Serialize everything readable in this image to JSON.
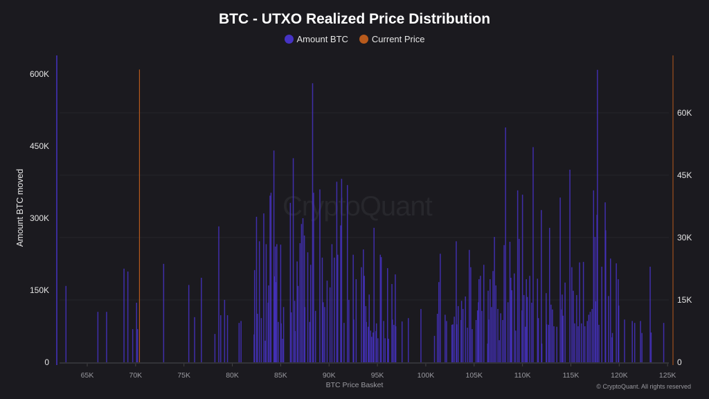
{
  "chart_data": {
    "type": "bar",
    "title": "BTC - UTXO Realized Price Distribution",
    "xlabel": "BTC Price Basket",
    "ylabel": "Amount BTC moved",
    "legend": {
      "placement": "top-center",
      "entries": [
        "Amount BTC",
        "Current Price"
      ]
    },
    "colors": {
      "amount": "#4633c4",
      "current_price": "#b85a1c",
      "background": "#1b1a1f"
    },
    "grid": true,
    "xlim": [
      61850,
      125560
    ],
    "ylim": [
      0,
      639000
    ],
    "y2lim": [
      0,
      73800
    ],
    "x_ticks": [
      "65K",
      "70K",
      "75K",
      "80K",
      "85K",
      "90K",
      "95K",
      "100K",
      "105K",
      "110K",
      "115K",
      "120K",
      "125K"
    ],
    "x_tick_values": [
      65000,
      70000,
      75000,
      80000,
      85000,
      90000,
      95000,
      100000,
      105000,
      110000,
      115000,
      120000,
      125000
    ],
    "y_ticks": [
      "0",
      "150K",
      "300K",
      "450K",
      "600K"
    ],
    "y_tick_values": [
      0,
      150000,
      300000,
      450000,
      600000
    ],
    "y2_ticks": [
      "0",
      "15K",
      "30K",
      "45K",
      "60K"
    ],
    "y2_tick_values": [
      0,
      15000,
      30000,
      45000,
      60000
    ],
    "current_price": 70400,
    "series": [
      {
        "name": "Amount BTC",
        "x": [
          62800,
          66100,
          67000,
          68800,
          69200,
          69700,
          70100,
          70200,
          72900,
          75500,
          76100,
          76800,
          78200,
          78600,
          78800,
          79200,
          79500,
          80700,
          80900,
          82250,
          82300,
          82500,
          82600,
          82800,
          83000,
          83250,
          83400,
          83500,
          83700,
          83750,
          83900,
          84000,
          84300,
          84350,
          84450,
          84500,
          84600,
          84750,
          85000,
          85050,
          85200,
          85300,
          86000,
          86100,
          86300,
          86450,
          86500,
          86700,
          86800,
          87000,
          87150,
          87300,
          87450,
          87500,
          87800,
          88000,
          88100,
          88300,
          88400,
          88600,
          89050,
          89300,
          89400,
          89550,
          89800,
          90100,
          90300,
          90550,
          90800,
          90900,
          91200,
          91300,
          91550,
          91900,
          92050,
          92500,
          92550,
          92800,
          93350,
          93550,
          93650,
          93800,
          93850,
          94050,
          94150,
          94300,
          94400,
          94550,
          94650,
          94850,
          94900,
          95050,
          95300,
          95400,
          95650,
          95800,
          96050,
          96150,
          96500,
          96550,
          96700,
          96850,
          96900,
          97550,
          98200,
          99500,
          100900,
          101200,
          101350,
          101500,
          102000,
          102150,
          102700,
          102800,
          102950,
          103150,
          103200,
          103350,
          103650,
          103700,
          103850,
          104100,
          104300,
          104500,
          104650,
          104800,
          105200,
          105350,
          105450,
          105500,
          105650,
          105800,
          106000,
          106400,
          106450,
          106500,
          106650,
          106800,
          106950,
          107100,
          107250,
          107450,
          107600,
          107750,
          107950,
          108100,
          108250,
          108500,
          108700,
          108800,
          108900,
          109150,
          109300,
          109500,
          109650,
          109950,
          110000,
          110150,
          110300,
          110400,
          110500,
          110750,
          110950,
          111100,
          111550,
          111650,
          111950,
          112000,
          112450,
          112500,
          112700,
          112800,
          112950,
          113100,
          113250,
          113550,
          113900,
          114050,
          114100,
          114200,
          114400,
          114900,
          115100,
          115250,
          115400,
          115600,
          115750,
          115900,
          116100,
          116300,
          116450,
          116700,
          116850,
          117000,
          117200,
          117350,
          117500,
          117550,
          117700,
          117750,
          117900,
          118200,
          118550,
          118600,
          118900,
          119100,
          119250,
          119300,
          119700,
          119900,
          119950,
          120550,
          121350,
          121600,
          122200,
          122350,
          123200,
          123300,
          124600
        ],
        "values": [
          159000,
          105000,
          105000,
          195000,
          189000,
          69000,
          124000,
          69000,
          205000,
          161000,
          94000,
          176000,
          59000,
          283000,
          98000,
          130000,
          98000,
          82000,
          86000,
          58000,
          192000,
          303000,
          101000,
          252000,
          92000,
          310000,
          45000,
          246000,
          124000,
          160000,
          347000,
          353000,
          441000,
          179000,
          241000,
          167000,
          246000,
          84000,
          245000,
          81000,
          49000,
          115000,
          332000,
          104000,
          425000,
          128000,
          65000,
          210000,
          159000,
          248000,
          288000,
          300000,
          264000,
          115000,
          229000,
          84000,
          203000,
          581000,
          353000,
          107000,
          360000,
          218000,
          125000,
          115000,
          170000,
          156000,
          246000,
          218000,
          376000,
          224000,
          285000,
          382000,
          82000,
          369000,
          130000,
          224000,
          89000,
          173000,
          198000,
          235000,
          180000,
          117000,
          84000,
          74000,
          141000,
          66000,
          53000,
          62000,
          280000,
          65000,
          81000,
          50000,
          224000,
          219000,
          86000,
          50000,
          196000,
          49000,
          163000,
          89000,
          78000,
          183000,
          75000,
          85000,
          92000,
          111000,
          55000,
          101000,
          167000,
          226000,
          99000,
          86000,
          78000,
          79000,
          95000,
          252000,
          79000,
          117000,
          88000,
          128000,
          111000,
          137000,
          72000,
          234000,
          198000,
          69000,
          88000,
          108000,
          125000,
          173000,
          180000,
          107000,
          203000,
          39000,
          149000,
          89000,
          173000,
          115000,
          190000,
          261000,
          160000,
          111000,
          46000,
          102000,
          88000,
          244000,
          489000,
          125000,
          251000,
          176000,
          150000,
          185000,
          66000,
          358000,
          257000,
          108000,
          349000,
          140000,
          74000,
          173000,
          136000,
          180000,
          124000,
          448000,
          174000,
          92000,
          317000,
          39000,
          144000,
          79000,
          78000,
          280000,
          120000,
          110000,
          75000,
          74000,
          343000,
          110000,
          141000,
          97000,
          166000,
          401000,
          198000,
          149000,
          81000,
          140000,
          75000,
          208000,
          81000,
          209000,
          75000,
          86000,
          99000,
          105000,
          111000,
          358000,
          261000,
          127000,
          307000,
          609000,
          78000,
          199000,
          333000,
          275000,
          138000,
          216000,
          52000,
          61000,
          206000,
          173000,
          118000,
          89000,
          86000,
          82000,
          86000,
          61000,
          199000,
          62000,
          82000
        ]
      }
    ]
  },
  "watermark": "CryptoQuant",
  "copyright": "© CryptoQuant. All rights reserved"
}
